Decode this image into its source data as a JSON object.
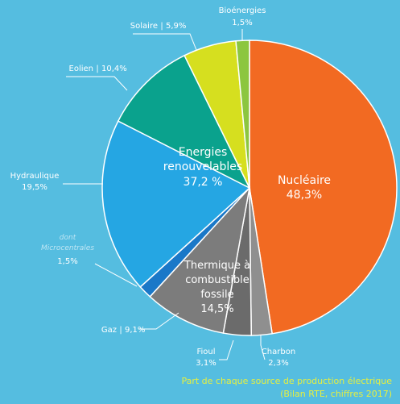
{
  "chart_data": {
    "type": "pie",
    "slices": [
      {
        "label": "Nucléaire",
        "value_text": "48,3%",
        "value": 48.3,
        "color": "#f26a22"
      },
      {
        "label": "Charbon",
        "value_text": "2,3%",
        "value": 2.3,
        "color": "#8f8f8f"
      },
      {
        "label": "Fioul",
        "value_text": "3,1%",
        "value": 3.1,
        "color": "#6b6b6b"
      },
      {
        "label": "Gaz",
        "value_text": "9,1%",
        "value": 9.1,
        "color": "#7c7c7c"
      },
      {
        "label": "Microcentrales",
        "prefix": "dont",
        "value_text": "1,5%",
        "value": 1.5,
        "color": "#1a78c8"
      },
      {
        "label": "Hydraulique",
        "value_text": "19,5%",
        "value": 19.5,
        "color": "#25a6e3"
      },
      {
        "label": "Eolien",
        "value_text": "10,4%",
        "value": 10.4,
        "color": "#0aa28d"
      },
      {
        "label": "Solaire",
        "value_text": "5,9%",
        "value": 5.9,
        "color": "#d6df1f"
      },
      {
        "label": "Bioénergies",
        "value_text": "1,5%",
        "value": 1.5,
        "color": "#8cc63f"
      }
    ],
    "groups": [
      {
        "label_lines": [
          "Energies",
          "renouvelables"
        ],
        "value_text": "37,2 %"
      },
      {
        "label_lines": [
          "Thermique à",
          "combustible",
          "fossile"
        ],
        "value_text": "14,5%"
      }
    ],
    "caption_lines": [
      "Part de chaque source de production électrique",
      "(Bilan RTE, chiffres 2017)"
    ]
  }
}
